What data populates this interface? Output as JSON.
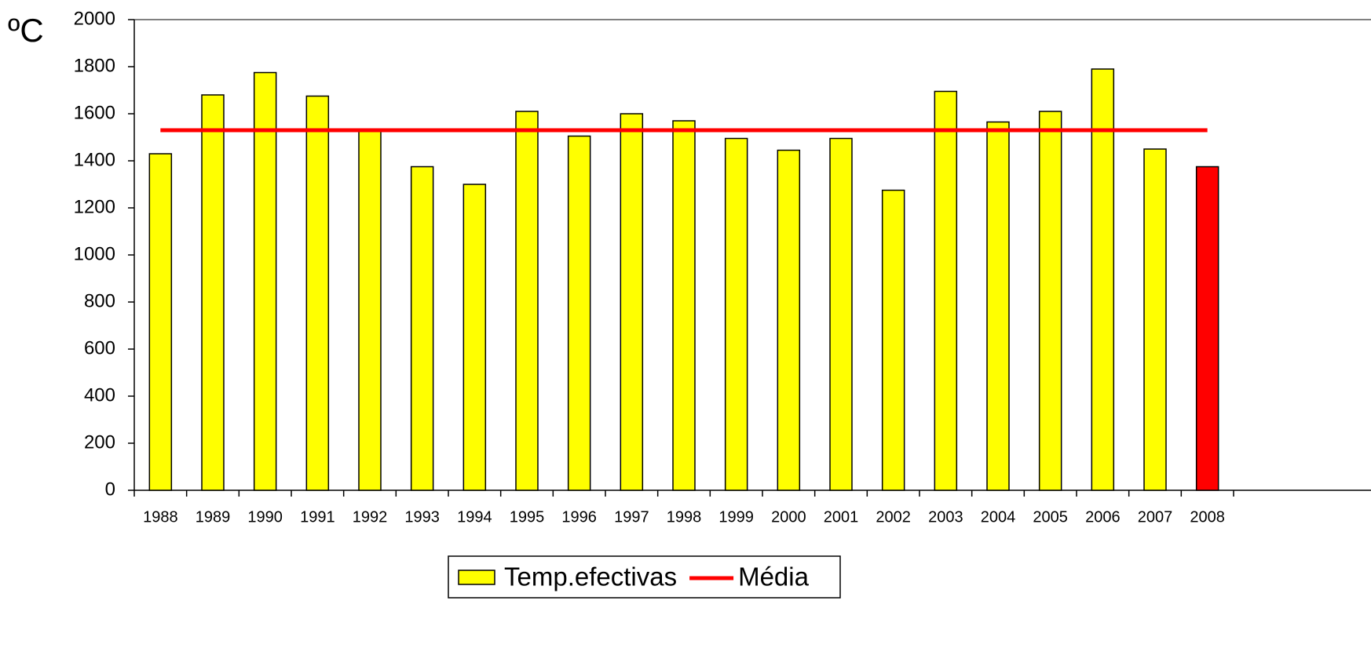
{
  "chart_data": {
    "type": "bar",
    "y_label": "ºC",
    "categories": [
      "1988",
      "1989",
      "1990",
      "1991",
      "1992",
      "1993",
      "1994",
      "1995",
      "1996",
      "1997",
      "1998",
      "1999",
      "2000",
      "2001",
      "2002",
      "2003",
      "2004",
      "2005",
      "2006",
      "2007",
      "2008"
    ],
    "series": [
      {
        "name": "Temp.efectivas",
        "type": "bar",
        "color": "#ffff00",
        "colors": [
          "#ffff00",
          "#ffff00",
          "#ffff00",
          "#ffff00",
          "#ffff00",
          "#ffff00",
          "#ffff00",
          "#ffff00",
          "#ffff00",
          "#ffff00",
          "#ffff00",
          "#ffff00",
          "#ffff00",
          "#ffff00",
          "#ffff00",
          "#ffff00",
          "#ffff00",
          "#ffff00",
          "#ffff00",
          "#ffff00",
          "#ff0000"
        ],
        "values": [
          1430,
          1680,
          1775,
          1675,
          1530,
          1375,
          1300,
          1610,
          1505,
          1600,
          1570,
          1495,
          1445,
          1495,
          1275,
          1695,
          1565,
          1610,
          1790,
          1450,
          1375
        ]
      },
      {
        "name": "Média",
        "type": "line",
        "color": "#ff0000",
        "values": [
          1530,
          1530,
          1530,
          1530,
          1530,
          1530,
          1530,
          1530,
          1530,
          1530,
          1530,
          1530,
          1530,
          1530,
          1530,
          1530,
          1530,
          1530,
          1530,
          1530,
          1530
        ]
      }
    ],
    "ylim": [
      0,
      2000
    ],
    "yticks": [
      0,
      200,
      400,
      600,
      800,
      1000,
      1200,
      1400,
      1600,
      1800,
      2000
    ],
    "legend": "bottom"
  }
}
